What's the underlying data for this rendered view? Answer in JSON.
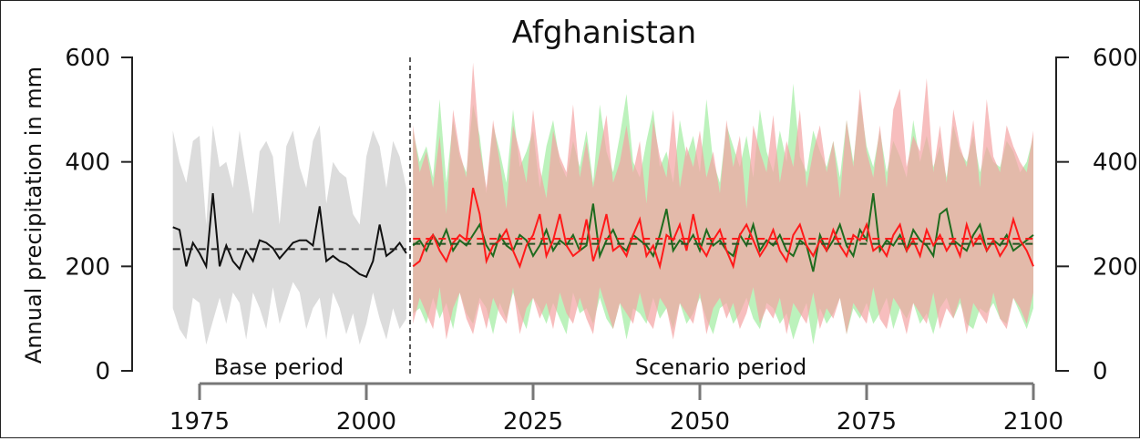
{
  "chart_data": {
    "type": "area",
    "title": "Afghanistan",
    "ylabel": "Annual precipitation in mm",
    "xlabel": "",
    "xlim": [
      1971,
      2100
    ],
    "ylim": [
      0,
      600
    ],
    "x_ticks": [
      1975,
      2000,
      2025,
      2050,
      2075,
      2100
    ],
    "y_ticks": [
      0,
      200,
      400,
      600
    ],
    "grid": false,
    "legend": "none",
    "periods": {
      "base_label": "Base period",
      "scenario_label": "Scenario period",
      "divider_x": 2006
    },
    "colors": {
      "base_band": "#dcdcdc",
      "scenario_band_red": "#f4a3a3",
      "scenario_band_green": "#a5eda5",
      "base_line": "#111111",
      "red_line": "#ff1a1a",
      "green_line": "#1e6b1e"
    },
    "base_mean": 233,
    "scenario_means": [
      253,
      243
    ],
    "base": {
      "x": [
        1971,
        1972,
        1973,
        1974,
        1975,
        1976,
        1977,
        1978,
        1979,
        1980,
        1981,
        1982,
        1983,
        1984,
        1985,
        1986,
        1987,
        1988,
        1989,
        1990,
        1991,
        1992,
        1993,
        1994,
        1995,
        1996,
        1997,
        1998,
        1999,
        2000,
        2001,
        2002,
        2003,
        2004,
        2005,
        2006
      ],
      "mean": [
        275,
        270,
        200,
        245,
        225,
        200,
        340,
        200,
        240,
        210,
        195,
        230,
        210,
        250,
        245,
        235,
        215,
        230,
        245,
        250,
        250,
        240,
        315,
        210,
        220,
        210,
        205,
        195,
        185,
        180,
        210,
        280,
        220,
        230,
        245,
        225
      ],
      "low": [
        120,
        80,
        60,
        140,
        130,
        50,
        95,
        140,
        90,
        150,
        130,
        60,
        150,
        120,
        80,
        160,
        90,
        130,
        170,
        150,
        80,
        120,
        140,
        60,
        150,
        120,
        70,
        110,
        50,
        90,
        150,
        100,
        60,
        120,
        80,
        100
      ],
      "high": [
        460,
        400,
        360,
        440,
        450,
        280,
        470,
        390,
        400,
        350,
        460,
        380,
        300,
        420,
        440,
        410,
        280,
        430,
        460,
        390,
        350,
        440,
        470,
        320,
        400,
        380,
        370,
        300,
        280,
        410,
        460,
        430,
        350,
        440,
        410,
        350
      ]
    },
    "scenario": {
      "x": [
        2007,
        2008,
        2009,
        2010,
        2011,
        2012,
        2013,
        2014,
        2015,
        2016,
        2017,
        2018,
        2019,
        2020,
        2021,
        2022,
        2023,
        2024,
        2025,
        2026,
        2027,
        2028,
        2029,
        2030,
        2031,
        2032,
        2033,
        2034,
        2035,
        2036,
        2037,
        2038,
        2039,
        2040,
        2041,
        2042,
        2043,
        2044,
        2045,
        2046,
        2047,
        2048,
        2049,
        2050,
        2051,
        2052,
        2053,
        2054,
        2055,
        2056,
        2057,
        2058,
        2059,
        2060,
        2061,
        2062,
        2063,
        2064,
        2065,
        2066,
        2067,
        2068,
        2069,
        2070,
        2071,
        2072,
        2073,
        2074,
        2075,
        2076,
        2077,
        2078,
        2079,
        2080,
        2081,
        2082,
        2083,
        2084,
        2085,
        2086,
        2087,
        2088,
        2089,
        2090,
        2091,
        2092,
        2093,
        2094,
        2095,
        2096,
        2097,
        2098,
        2099,
        2100
      ],
      "red_low": [
        90,
        140,
        110,
        80,
        160,
        60,
        120,
        150,
        100,
        70,
        130,
        80,
        140,
        110,
        90,
        160,
        70,
        120,
        140,
        100,
        130,
        80,
        150,
        110,
        90,
        140,
        100,
        70,
        160,
        120,
        80,
        130,
        110,
        90,
        150,
        100,
        80,
        140,
        120,
        60,
        130,
        110,
        90,
        150,
        70,
        120,
        140,
        100,
        130,
        80,
        110,
        160,
        90,
        120,
        100,
        140,
        70,
        130,
        110,
        90,
        150,
        80,
        120,
        100,
        140,
        70,
        130,
        110,
        90,
        160,
        100,
        80,
        140,
        120,
        70,
        130,
        110,
        90,
        150,
        80,
        120,
        100,
        140,
        70,
        130,
        110,
        90,
        150,
        100,
        80,
        140,
        120,
        90,
        150
      ],
      "red_high": [
        470,
        380,
        420,
        350,
        450,
        300,
        500,
        420,
        370,
        590,
        430,
        350,
        480,
        400,
        310,
        470,
        420,
        360,
        500,
        390,
        330,
        460,
        410,
        380,
        510,
        370,
        440,
        350,
        420,
        490,
        360,
        400,
        470,
        380,
        440,
        320,
        480,
        410,
        370,
        500,
        350,
        430,
        390,
        460,
        370,
        420,
        340,
        480,
        390,
        450,
        310,
        470,
        420,
        380,
        490,
        360,
        440,
        390,
        500,
        350,
        420,
        470,
        380,
        440,
        330,
        480,
        390,
        540,
        420,
        370,
        470,
        350,
        500,
        540,
        390,
        450,
        420,
        560,
        380,
        470,
        360,
        500,
        430,
        390,
        480,
        350,
        520,
        410,
        380,
        470,
        430,
        400,
        380,
        460
      ],
      "green_low": [
        110,
        120,
        90,
        140,
        100,
        130,
        80,
        150,
        110,
        90,
        140,
        120,
        70,
        130,
        100,
        150,
        110,
        80,
        140,
        120,
        90,
        130,
        100,
        70,
        150,
        110,
        120,
        90,
        140,
        100,
        80,
        130,
        60,
        120,
        110,
        90,
        140,
        100,
        120,
        80,
        130,
        90,
        110,
        140,
        100,
        70,
        120,
        130,
        90,
        110,
        140,
        100,
        80,
        130,
        120,
        90,
        110,
        60,
        100,
        130,
        50,
        120,
        90,
        110,
        140,
        70,
        120,
        100,
        130,
        90,
        110,
        140,
        80,
        120,
        100,
        130,
        90,
        110,
        70,
        120,
        140,
        100,
        130,
        90,
        80,
        120,
        110,
        130,
        100,
        90,
        140,
        110,
        80,
        120
      ],
      "green_high": [
        460,
        400,
        430,
        370,
        520,
        360,
        480,
        410,
        380,
        510,
        450,
        340,
        470,
        420,
        360,
        500,
        390,
        420,
        460,
        350,
        430,
        480,
        400,
        370,
        440,
        390,
        460,
        360,
        510,
        420,
        380,
        450,
        530,
        400,
        370,
        440,
        500,
        390,
        420,
        360,
        480,
        410,
        450,
        380,
        520,
        400,
        360,
        470,
        430,
        390,
        450,
        370,
        500,
        420,
        380,
        460,
        400,
        550,
        410,
        380,
        460,
        420,
        390,
        440,
        370,
        480,
        400,
        520,
        430,
        390,
        460,
        380,
        440,
        410,
        370,
        480,
        400,
        450,
        390,
        430,
        370,
        470,
        420,
        400,
        450,
        380,
        430,
        400,
        390,
        440,
        420,
        380,
        400,
        450
      ],
      "red": [
        200,
        210,
        245,
        260,
        230,
        210,
        245,
        260,
        250,
        350,
        300,
        210,
        240,
        250,
        270,
        230,
        200,
        240,
        260,
        300,
        220,
        250,
        300,
        240,
        220,
        230,
        290,
        210,
        250,
        300,
        230,
        240,
        220,
        260,
        290,
        220,
        240,
        200,
        260,
        250,
        280,
        230,
        300,
        240,
        220,
        250,
        270,
        230,
        200,
        260,
        280,
        250,
        220,
        240,
        270,
        230,
        210,
        260,
        280,
        240,
        220,
        250,
        230,
        270,
        240,
        220,
        260,
        250,
        280,
        230,
        240,
        220,
        260,
        280,
        230,
        250,
        220,
        270,
        240,
        260,
        230,
        250,
        220,
        280,
        240,
        260,
        230,
        250,
        220,
        240,
        290,
        250,
        230,
        200
      ],
      "green": [
        240,
        250,
        230,
        260,
        240,
        270,
        230,
        250,
        240,
        260,
        280,
        240,
        220,
        260,
        240,
        230,
        260,
        250,
        220,
        240,
        270,
        230,
        250,
        240,
        260,
        230,
        240,
        320,
        220,
        250,
        270,
        240,
        230,
        260,
        250,
        240,
        220,
        260,
        310,
        230,
        250,
        240,
        260,
        230,
        270,
        240,
        250,
        230,
        220,
        260,
        240,
        280,
        230,
        250,
        240,
        260,
        230,
        220,
        250,
        240,
        190,
        260,
        230,
        250,
        280,
        240,
        220,
        270,
        250,
        340,
        230,
        250,
        240,
        260,
        230,
        270,
        250,
        240,
        220,
        300,
        310,
        250,
        240,
        230,
        260,
        280,
        230,
        250,
        240,
        260,
        230,
        240,
        250,
        260
      ]
    }
  }
}
